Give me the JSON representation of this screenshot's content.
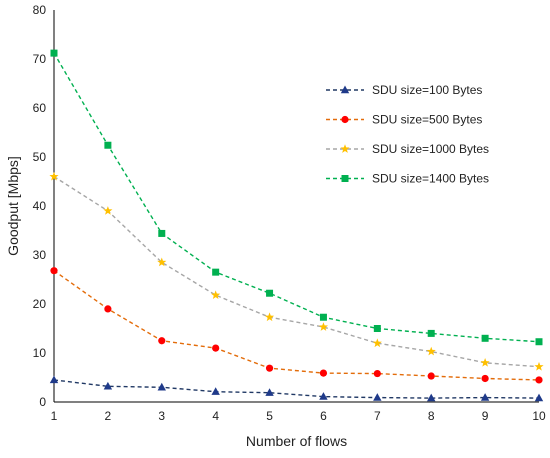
{
  "chart_data": {
    "type": "line",
    "xlabel": "Number of flows",
    "ylabel": "Goodput [Mbps]",
    "x": [
      1,
      2,
      3,
      4,
      5,
      6,
      7,
      8,
      9,
      10
    ],
    "xlim": [
      1,
      10
    ],
    "ylim": [
      0,
      80
    ],
    "yticks": [
      0,
      10,
      20,
      30,
      40,
      50,
      60,
      70,
      80
    ],
    "grid": false,
    "legend_position": "right",
    "series": [
      {
        "name": "SDU size=100 Bytes",
        "color": "#203864",
        "marker": "triangle",
        "values": [
          4.5,
          3.2,
          3.0,
          2.1,
          1.9,
          1.1,
          0.9,
          0.8,
          0.9,
          0.8
        ]
      },
      {
        "name": "SDU size=500 Bytes",
        "color": "#e36c0a",
        "marker": "circle",
        "values": [
          26.8,
          19.0,
          12.5,
          11.0,
          6.9,
          5.9,
          5.8,
          5.3,
          4.8,
          4.5
        ]
      },
      {
        "name": "SDU size=1000 Bytes",
        "color": "#a6a6a6",
        "marker": "star",
        "values": [
          46.0,
          39.0,
          28.5,
          21.8,
          17.3,
          15.3,
          12.0,
          10.3,
          8.0,
          7.2
        ]
      },
      {
        "name": "SDU size=1400 Bytes",
        "color": "#00b050",
        "marker": "square",
        "values": [
          71.2,
          52.4,
          34.4,
          26.5,
          22.2,
          17.3,
          15.0,
          14.0,
          13.0,
          12.3
        ]
      }
    ],
    "marker_colors": {
      "triangle": "#1f3a8a",
      "circle": "#ff0000",
      "star": "#ffc000",
      "square": "#00b050"
    }
  }
}
